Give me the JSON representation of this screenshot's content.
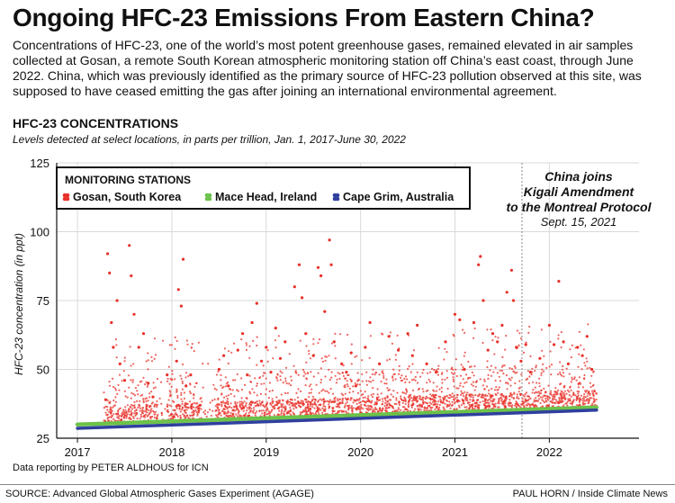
{
  "headline": "Ongoing HFC-23 Emissions From Eastern China?",
  "intro": "Concentrations of HFC-23, one of the world’s most potent greenhouse gases, remained elevated in air samples collected at Gosan, a remote South Korean atmospheric monitoring station off China’s east coast, through June 2022. China, which was previously identified as the primary source of HFC-23 pollution observed at this site, was supposed to have ceased emitting the gas after joining an international environmental agreement.",
  "credit": "Data reporting by PETER ALDHOUS for ICN",
  "source": "SOURCE: Advanced Global Atmospheric Gases Experiment (AGAGE)",
  "byline": "PAUL HORN / Inside Climate News",
  "chart_data": {
    "type": "scatter",
    "title": "HFC-23 CONCENTRATIONS",
    "subtitle": "Levels detected at select locations, in parts per trillion, Jan. 1, 2017-June 30, 2022",
    "xlabel": "",
    "ylabel": "HFC-23 concentration (in ppt)",
    "xlim": [
      2016.78,
      2022.95
    ],
    "ylim": [
      25,
      125
    ],
    "x_ticks": [
      "2017",
      "2018",
      "2019",
      "2020",
      "2021",
      "2022"
    ],
    "y_ticks": [
      "25",
      "50",
      "75",
      "100",
      "125"
    ],
    "grid": true,
    "legend_title": "MONITORING STATIONS",
    "legend_position": "top-left",
    "series": [
      {
        "name": "Gosan, South Korea",
        "color": "#e8312a",
        "points": [
          [
            2017.3,
            39
          ],
          [
            2017.32,
            92
          ],
          [
            2017.34,
            85
          ],
          [
            2017.36,
            67
          ],
          [
            2017.38,
            58
          ],
          [
            2017.42,
            75
          ],
          [
            2017.45,
            52
          ],
          [
            2017.5,
            46
          ],
          [
            2017.55,
            95
          ],
          [
            2017.57,
            84
          ],
          [
            2017.6,
            70
          ],
          [
            2017.65,
            58
          ],
          [
            2017.7,
            63
          ],
          [
            2017.75,
            45
          ],
          [
            2017.8,
            40
          ],
          [
            2017.95,
            48
          ],
          [
            2018.05,
            53
          ],
          [
            2018.07,
            79
          ],
          [
            2018.1,
            73
          ],
          [
            2018.12,
            90
          ],
          [
            2018.15,
            44
          ],
          [
            2018.2,
            48
          ],
          [
            2018.3,
            37
          ],
          [
            2018.5,
            50
          ],
          [
            2018.55,
            55
          ],
          [
            2018.6,
            44
          ],
          [
            2018.7,
            57
          ],
          [
            2018.75,
            63
          ],
          [
            2018.8,
            48
          ],
          [
            2018.85,
            67
          ],
          [
            2018.9,
            74
          ],
          [
            2018.95,
            53
          ],
          [
            2019.0,
            58
          ],
          [
            2019.05,
            49
          ],
          [
            2019.1,
            65
          ],
          [
            2019.15,
            54
          ],
          [
            2019.2,
            60
          ],
          [
            2019.3,
            80
          ],
          [
            2019.35,
            88
          ],
          [
            2019.38,
            76
          ],
          [
            2019.42,
            63
          ],
          [
            2019.5,
            55
          ],
          [
            2019.55,
            87
          ],
          [
            2019.58,
            84
          ],
          [
            2019.62,
            71
          ],
          [
            2019.67,
            97
          ],
          [
            2019.69,
            88
          ],
          [
            2019.72,
            60
          ],
          [
            2019.8,
            52
          ],
          [
            2019.85,
            49
          ],
          [
            2019.9,
            56
          ],
          [
            2019.95,
            44
          ],
          [
            2020.05,
            58
          ],
          [
            2020.1,
            67
          ],
          [
            2020.2,
            52
          ],
          [
            2020.3,
            62
          ],
          [
            2020.4,
            57
          ],
          [
            2020.5,
            63
          ],
          [
            2020.55,
            55
          ],
          [
            2020.6,
            66
          ],
          [
            2020.7,
            52
          ],
          [
            2020.8,
            49
          ],
          [
            2020.9,
            60
          ],
          [
            2021.0,
            70
          ],
          [
            2021.05,
            68
          ],
          [
            2021.1,
            50
          ],
          [
            2021.2,
            67
          ],
          [
            2021.25,
            88
          ],
          [
            2021.27,
            91
          ],
          [
            2021.3,
            75
          ],
          [
            2021.35,
            57
          ],
          [
            2021.4,
            63
          ],
          [
            2021.45,
            60
          ],
          [
            2021.5,
            66
          ],
          [
            2021.55,
            78
          ],
          [
            2021.6,
            86
          ],
          [
            2021.62,
            75
          ],
          [
            2021.65,
            58
          ],
          [
            2021.7,
            53
          ],
          [
            2021.75,
            59
          ],
          [
            2021.8,
            49
          ],
          [
            2021.9,
            54
          ],
          [
            2022.0,
            66
          ],
          [
            2022.05,
            59
          ],
          [
            2022.1,
            82
          ],
          [
            2022.15,
            60
          ],
          [
            2022.2,
            52
          ],
          [
            2022.3,
            58
          ],
          [
            2022.35,
            55
          ],
          [
            2022.4,
            62
          ],
          [
            2022.45,
            50
          ]
        ]
      },
      {
        "name": "Mace Head, Ireland",
        "color": "#6cc24a",
        "start": [
          2017.0,
          30.0
        ],
        "end": [
          2022.5,
          36.2
        ]
      },
      {
        "name": "Cape Grim, Australia",
        "color": "#2f3f9e",
        "start": [
          2017.0,
          28.6
        ],
        "end": [
          2022.5,
          35.2
        ]
      }
    ],
    "annotations": [
      {
        "x": 2021.71,
        "lines": [
          "China joins",
          "Kigali Amendment",
          "to the Montreal Protocol"
        ],
        "date": "Sept. 15, 2021"
      }
    ]
  }
}
